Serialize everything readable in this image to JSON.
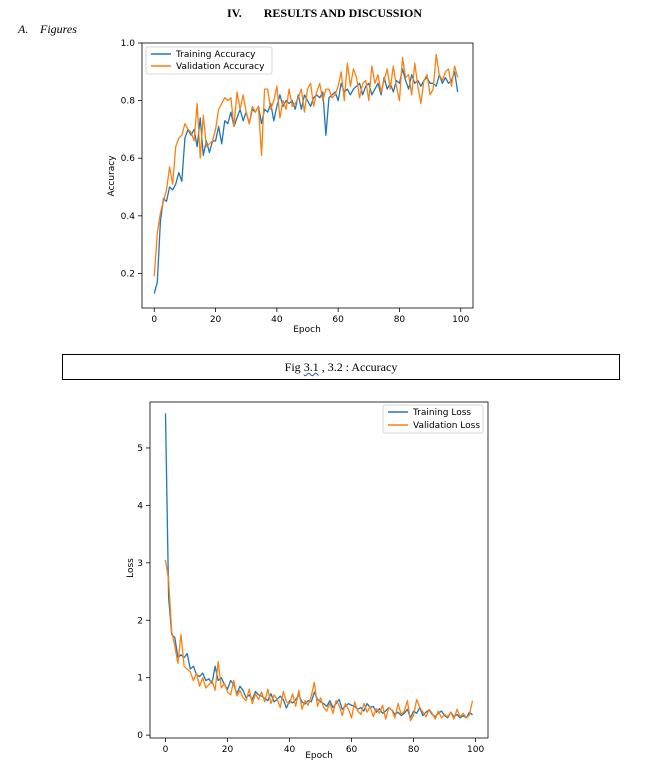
{
  "section": {
    "number": "IV.",
    "title": "RESULTS AND DISCUSSION"
  },
  "subsection": {
    "letter": "A.",
    "title": "Figures"
  },
  "caption": {
    "prefix": "Fig ",
    "squiggle": "3.1",
    "rest": " , 3.2 : Accuracy"
  },
  "colors": {
    "training": "#1f77b4",
    "validation": "#ff7f0e"
  },
  "chart_data": [
    {
      "type": "line",
      "xlabel": "Epoch",
      "ylabel": "Accuracy",
      "xlim": [
        -4,
        104
      ],
      "ylim": [
        0.08,
        1.0
      ],
      "xticks": [
        0,
        20,
        40,
        60,
        80,
        100
      ],
      "yticks": [
        0.2,
        0.4,
        0.6,
        0.8,
        1.0
      ],
      "ytick_labels": [
        "0.2",
        "0.4",
        "0.6",
        "0.8",
        "1.0"
      ],
      "legend": "upper-left",
      "series": [
        {
          "name": "Training Accuracy",
          "values": [
            0.13,
            0.17,
            0.38,
            0.46,
            0.45,
            0.5,
            0.49,
            0.51,
            0.55,
            0.52,
            0.67,
            0.7,
            0.68,
            0.7,
            0.64,
            0.74,
            0.61,
            0.66,
            0.62,
            0.66,
            0.66,
            0.71,
            0.65,
            0.73,
            0.72,
            0.76,
            0.71,
            0.74,
            0.77,
            0.73,
            0.76,
            0.72,
            0.77,
            0.76,
            0.78,
            0.72,
            0.77,
            0.76,
            0.79,
            0.73,
            0.78,
            0.82,
            0.78,
            0.8,
            0.79,
            0.8,
            0.77,
            0.82,
            0.77,
            0.82,
            0.8,
            0.78,
            0.81,
            0.82,
            0.81,
            0.83,
            0.68,
            0.81,
            0.82,
            0.83,
            0.8,
            0.86,
            0.83,
            0.84,
            0.82,
            0.84,
            0.85,
            0.86,
            0.82,
            0.85,
            0.86,
            0.82,
            0.84,
            0.86,
            0.82,
            0.88,
            0.84,
            0.86,
            0.83,
            0.87,
            0.86,
            0.91,
            0.87,
            0.84,
            0.89,
            0.86,
            0.87,
            0.85,
            0.87,
            0.88,
            0.86,
            0.86,
            0.85,
            0.89,
            0.86,
            0.88,
            0.86,
            0.87,
            0.9,
            0.83
          ]
        },
        {
          "name": "Validation Accuracy",
          "values": [
            0.19,
            0.34,
            0.41,
            0.45,
            0.49,
            0.57,
            0.51,
            0.64,
            0.67,
            0.68,
            0.72,
            0.7,
            0.69,
            0.66,
            0.79,
            0.6,
            0.75,
            0.64,
            0.65,
            0.66,
            0.7,
            0.77,
            0.79,
            0.81,
            0.8,
            0.81,
            0.71,
            0.83,
            0.77,
            0.82,
            0.76,
            0.72,
            0.78,
            0.76,
            0.78,
            0.61,
            0.84,
            0.84,
            0.77,
            0.8,
            0.85,
            0.74,
            0.8,
            0.77,
            0.84,
            0.78,
            0.79,
            0.81,
            0.84,
            0.76,
            0.84,
            0.86,
            0.78,
            0.83,
            0.86,
            0.8,
            0.84,
            0.84,
            0.81,
            0.82,
            0.85,
            0.9,
            0.8,
            0.93,
            0.85,
            0.91,
            0.88,
            0.81,
            0.86,
            0.87,
            0.8,
            0.92,
            0.86,
            0.89,
            0.83,
            0.87,
            0.91,
            0.84,
            0.92,
            0.85,
            0.8,
            0.95,
            0.88,
            0.89,
            0.82,
            0.93,
            0.85,
            0.79,
            0.87,
            0.89,
            0.82,
            0.84,
            0.96,
            0.89,
            0.87,
            0.9,
            0.91,
            0.85,
            0.92,
            0.88
          ]
        }
      ]
    },
    {
      "type": "line",
      "xlabel": "Epoch",
      "ylabel": "Loss",
      "xlim": [
        -5,
        104
      ],
      "ylim": [
        -0.05,
        5.8
      ],
      "xticks": [
        0,
        20,
        40,
        60,
        80,
        100
      ],
      "yticks": [
        0,
        1,
        2,
        3,
        4,
        5
      ],
      "legend": "upper-right",
      "series": [
        {
          "name": "Training Loss",
          "values": [
            5.6,
            2.4,
            1.75,
            1.7,
            1.35,
            1.4,
            1.35,
            1.42,
            1.15,
            1.2,
            1.05,
            1.02,
            1.08,
            0.95,
            0.98,
            0.9,
            1.2,
            0.95,
            1.0,
            0.88,
            0.8,
            0.95,
            0.88,
            0.72,
            0.85,
            0.78,
            0.65,
            0.7,
            0.62,
            0.76,
            0.7,
            0.68,
            0.64,
            0.6,
            0.72,
            0.58,
            0.62,
            0.68,
            0.62,
            0.47,
            0.6,
            0.56,
            0.62,
            0.7,
            0.58,
            0.54,
            0.6,
            0.58,
            0.75,
            0.62,
            0.58,
            0.55,
            0.5,
            0.6,
            0.48,
            0.55,
            0.62,
            0.45,
            0.5,
            0.55,
            0.52,
            0.5,
            0.45,
            0.48,
            0.42,
            0.55,
            0.48,
            0.5,
            0.4,
            0.46,
            0.38,
            0.42,
            0.48,
            0.44,
            0.36,
            0.4,
            0.34,
            0.38,
            0.45,
            0.3,
            0.42,
            0.38,
            0.48,
            0.34,
            0.4,
            0.44,
            0.36,
            0.32,
            0.38,
            0.42,
            0.34,
            0.3,
            0.4,
            0.32,
            0.36,
            0.3,
            0.34,
            0.3,
            0.4,
            0.35
          ]
        },
        {
          "name": "Validation Loss",
          "values": [
            3.05,
            2.7,
            1.8,
            1.55,
            1.25,
            1.75,
            1.2,
            1.15,
            1.1,
            0.95,
            1.08,
            0.85,
            1.0,
            0.82,
            0.88,
            0.95,
            0.78,
            1.28,
            0.82,
            0.9,
            0.75,
            0.7,
            0.95,
            0.68,
            0.78,
            0.65,
            0.6,
            0.8,
            0.55,
            0.72,
            0.62,
            0.75,
            0.58,
            0.8,
            0.55,
            0.7,
            0.62,
            0.48,
            0.76,
            0.58,
            0.55,
            0.72,
            0.5,
            0.78,
            0.45,
            0.6,
            0.52,
            0.68,
            0.92,
            0.5,
            0.65,
            0.48,
            0.42,
            0.56,
            0.38,
            0.6,
            0.52,
            0.34,
            0.55,
            0.45,
            0.3,
            0.58,
            0.42,
            0.36,
            0.55,
            0.4,
            0.5,
            0.32,
            0.46,
            0.38,
            0.52,
            0.28,
            0.48,
            0.44,
            0.3,
            0.55,
            0.36,
            0.42,
            0.6,
            0.25,
            0.35,
            0.62,
            0.48,
            0.4,
            0.32,
            0.45,
            0.38,
            0.28,
            0.42,
            0.3,
            0.36,
            0.32,
            0.4,
            0.28,
            0.45,
            0.32,
            0.38,
            0.3,
            0.35,
            0.6
          ]
        }
      ]
    }
  ]
}
